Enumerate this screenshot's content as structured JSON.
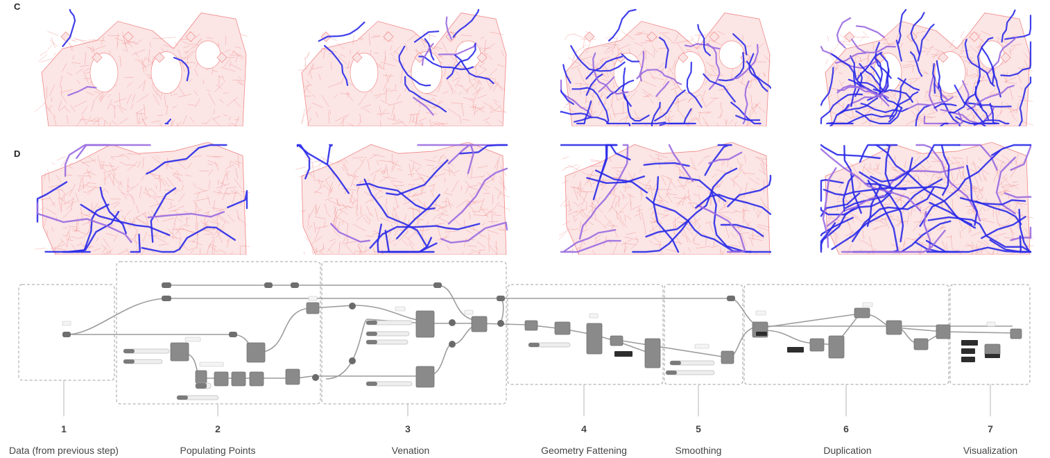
{
  "rows": [
    {
      "letter": "C",
      "panel_count": 4
    },
    {
      "letter": "D",
      "panel_count": 4
    }
  ],
  "colors": {
    "mesh": "#f07a7a",
    "mesh_fill": "#fbe3e3",
    "vein": "#2a2ae8",
    "vein_soft": "#9a6ae0",
    "group_border": "#a0a0a0",
    "node": "#8a8a8a",
    "wire": "#9c9c9c"
  },
  "steps": [
    {
      "number": "1",
      "label": "Data (from previous step)"
    },
    {
      "number": "2",
      "label": "Populating Points"
    },
    {
      "number": "3",
      "label": "Venation"
    },
    {
      "number": "4",
      "label": "Geometry Fattening"
    },
    {
      "number": "5",
      "label": "Smoothing"
    },
    {
      "number": "6",
      "label": "Duplication"
    },
    {
      "number": "7",
      "label": "Visualization"
    }
  ]
}
